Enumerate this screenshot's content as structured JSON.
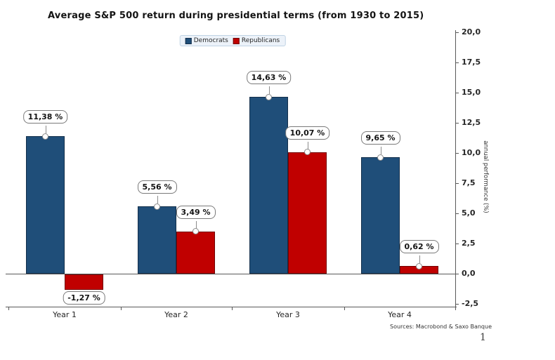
{
  "page": {
    "background": "#ffffff",
    "page_number": "1"
  },
  "header": {
    "title": "Average S&P 500 return during presidential terms (from 1930 to 2015)"
  },
  "footer": {
    "source": "Sources: Macrobond & Saxo Banque"
  },
  "chart_data": {
    "type": "bar",
    "title": "Average S&P 500 return during presidential terms (from 1930 to 2015)",
    "categories": [
      "Year 1",
      "Year 2",
      "Year 3",
      "Year 4"
    ],
    "series": [
      {
        "name": "Democrats",
        "color": "#1f4e79",
        "border_color": "#132f4b",
        "values": [
          11.38,
          5.56,
          14.63,
          9.65
        ],
        "labels": [
          "11,38 %",
          "5,56 %",
          "14,63 %",
          "9,65 %"
        ]
      },
      {
        "name": "Republicans",
        "color": "#c00000",
        "border_color": "#730202",
        "values": [
          -1.27,
          3.49,
          10.07,
          0.62
        ],
        "labels": [
          "-1,27 %",
          "3,49 %",
          "10,07 %",
          "0,62 %"
        ]
      }
    ],
    "xlabel": "",
    "ylabel": "annual performance (%)",
    "ylim": [
      -2.5,
      20.0
    ],
    "y_ticks": {
      "values": [
        20.0,
        17.5,
        15.0,
        12.5,
        10.0,
        7.5,
        5.0,
        2.5,
        0.0,
        -2.5
      ],
      "labels": [
        "20,0",
        "17,5",
        "15,0",
        "12,5",
        "10,0",
        "7,5",
        "5,0",
        "2,5",
        "0,0",
        "-2,5"
      ]
    },
    "grid": false,
    "legend_position": "top-center",
    "y_axis_side": "right",
    "source": "Sources: Macrobond & Saxo Banque"
  }
}
